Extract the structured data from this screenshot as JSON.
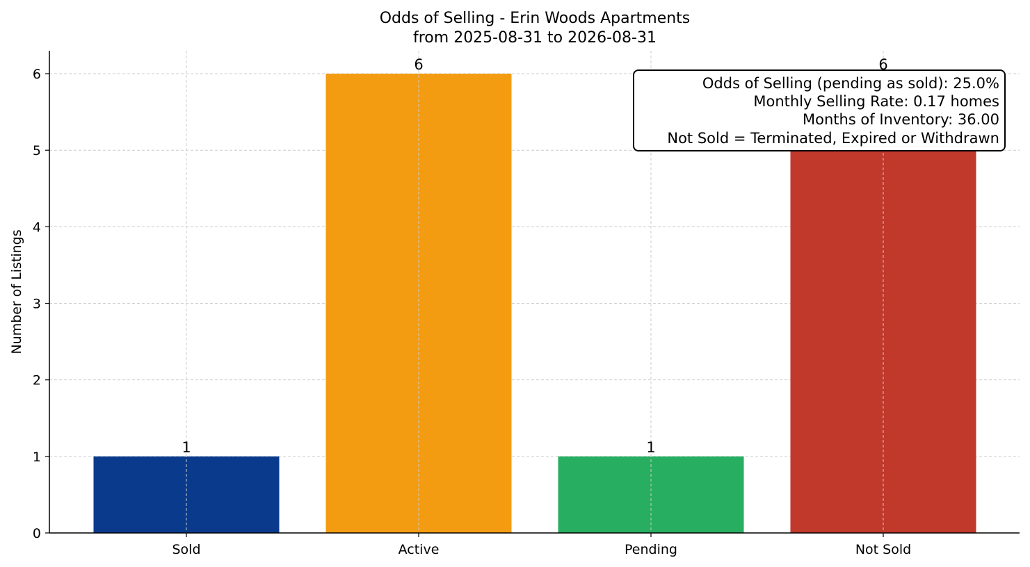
{
  "chart_data": {
    "type": "bar",
    "title": "Odds of Selling - Erin Woods Apartments",
    "subtitle": "from 2025-08-31 to 2026-08-31",
    "xlabel": "",
    "ylabel": "Number of Listings",
    "categories": [
      "Sold",
      "Active",
      "Pending",
      "Not Sold"
    ],
    "values": [
      1,
      6,
      1,
      6
    ],
    "colors": [
      "#0a3a8c",
      "#f39c12",
      "#27ae60",
      "#c0392b"
    ],
    "ylim": [
      0,
      6.3
    ],
    "yticks": [
      0,
      1,
      2,
      3,
      4,
      5,
      6
    ],
    "grid": true,
    "annotation": {
      "placement": "top-right",
      "lines": [
        "Odds of Selling (pending as sold): 25.0%",
        "Monthly Selling Rate: 0.17 homes",
        "Months of Inventory: 36.00",
        "Not Sold = Terminated, Expired or Withdrawn"
      ]
    }
  }
}
